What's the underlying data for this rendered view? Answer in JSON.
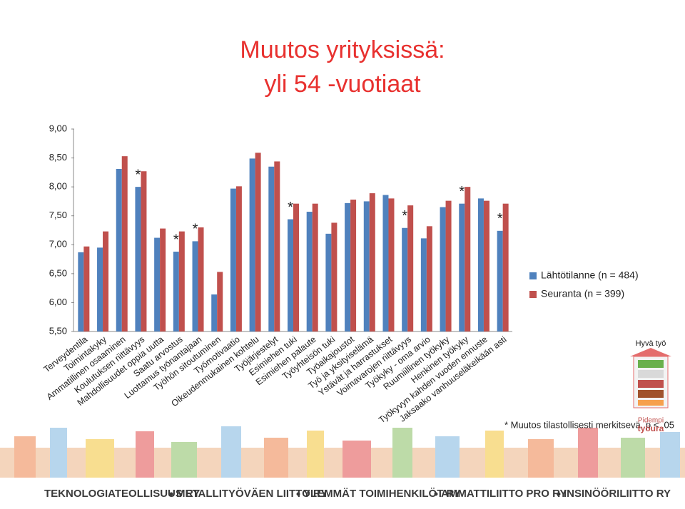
{
  "chart_data": {
    "type": "bar",
    "title": "Muutos yrityksissä:",
    "subtitle": "yli 54 -vuotiaat",
    "categories": [
      "Terveydentila",
      "Toimintakyky",
      "Ammatillinen osaaminen",
      "Koulutuksen riittävyys",
      "Mahdollisuudet oppia uutta",
      "Saatu arvostus",
      "Luottamus työnantajaan",
      "Työhön sitoutuminen",
      "Työmotivaatio",
      "Oikeudenmukainen kohtelu",
      "Työjärjestelyt",
      "Esimiehen tuki",
      "Esimiehen palaute",
      "Työyhteisön tuki",
      "Työaikajoustot",
      "Työ ja yksityiselämä",
      "Ystävät ja harrastukset",
      "Voimavarojen riittävyys",
      "Työkyky - oma arvio",
      "Ruumiillinen työkyky",
      "Henkinen työkyky",
      "Työkyvyn kahden vuoden ennuste",
      "Jaksaako vanhuuseläkeikään asti"
    ],
    "series": [
      {
        "name": "Lähtötilanne (n = 484)",
        "color": "#4f81bd",
        "values": [
          6.87,
          6.95,
          8.31,
          8.0,
          7.12,
          6.88,
          7.06,
          6.14,
          7.97,
          8.49,
          8.35,
          7.44,
          7.57,
          7.19,
          7.72,
          7.75,
          7.86,
          7.29,
          7.11,
          7.65,
          7.71,
          7.8,
          7.24
        ]
      },
      {
        "name": "Seuranta (n = 399)",
        "color": "#c0504d",
        "values": [
          6.97,
          7.23,
          8.53,
          8.27,
          7.28,
          7.23,
          7.3,
          6.53,
          8.01,
          8.59,
          8.44,
          7.71,
          7.71,
          7.38,
          7.78,
          7.89,
          7.8,
          7.68,
          7.32,
          7.76,
          8.0,
          7.76,
          7.71
        ]
      }
    ],
    "asterisk": "*",
    "asterisks": [
      false,
      false,
      false,
      true,
      false,
      true,
      true,
      false,
      false,
      false,
      false,
      true,
      false,
      false,
      false,
      false,
      false,
      true,
      false,
      false,
      true,
      false,
      true
    ],
    "footnote": "* Muutos tilastollisesti merkitsevä, p < .05",
    "ylim": [
      5.5,
      9.0
    ],
    "yticks": [
      {
        "value": 5.5,
        "label": "5,50"
      },
      {
        "value": 6.0,
        "label": "6,00"
      },
      {
        "value": 6.5,
        "label": "6,50"
      },
      {
        "value": 7.0,
        "label": "7,00"
      },
      {
        "value": 7.5,
        "label": "7,50"
      },
      {
        "value": 8.0,
        "label": "8,00"
      },
      {
        "value": 8.5,
        "label": "8,50"
      },
      {
        "value": 9.0,
        "label": "9,00"
      }
    ],
    "grid": false,
    "legend": "right"
  },
  "logo": {
    "top": "Hyvä työ",
    "line1": "Pidempi",
    "line2": "työura"
  },
  "footer": [
    "TEKNOLOGIATEOLLISUUS RY",
    "METALLITYÖVÄEN LIITTO RY",
    "YLEMMÄT TOIMIHENKILÖT RY",
    "AMMATTILIITTO PRO RY",
    "INSINÖÖRILIITTO RY"
  ]
}
